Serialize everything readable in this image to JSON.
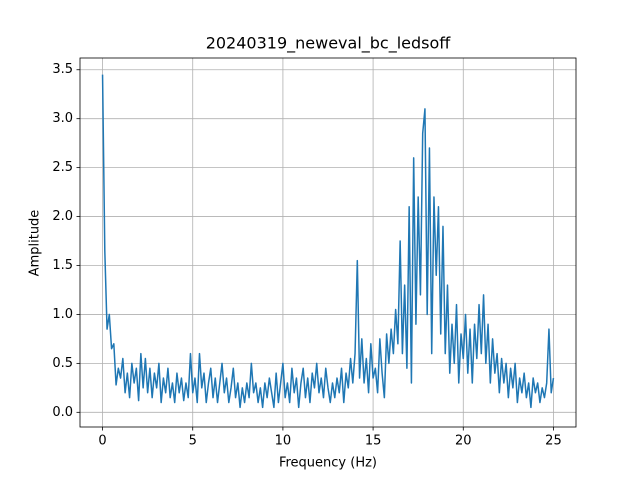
{
  "chart_data": {
    "type": "line",
    "title": "20240319_neweval_bc_ledsoff",
    "xlabel": "Frequency (Hz)",
    "ylabel": "Amplitude",
    "color": "#1f77b4",
    "grid": true,
    "xlim": [
      -1.25,
      26.25
    ],
    "ylim": [
      -0.15,
      3.62
    ],
    "xticks": [
      0,
      5,
      10,
      15,
      20,
      25
    ],
    "yticks": [
      {
        "value": 0,
        "label": "0.0"
      },
      {
        "value": 0.5,
        "label": "0.5"
      },
      {
        "value": 1,
        "label": "1.0"
      },
      {
        "value": 1.5,
        "label": "1.5"
      },
      {
        "value": 2,
        "label": "2.0"
      },
      {
        "value": 2.5,
        "label": "2.5"
      },
      {
        "value": 3,
        "label": "3.0"
      },
      {
        "value": 3.5,
        "label": "3.5"
      }
    ],
    "x": [
      0,
      0.125,
      0.25,
      0.375,
      0.5,
      0.625,
      0.75,
      0.875,
      1,
      1.125,
      1.25,
      1.375,
      1.5,
      1.625,
      1.75,
      1.875,
      2,
      2.125,
      2.25,
      2.375,
      2.5,
      2.625,
      2.75,
      2.875,
      3,
      3.125,
      3.25,
      3.375,
      3.5,
      3.625,
      3.75,
      3.875,
      4,
      4.125,
      4.25,
      4.375,
      4.5,
      4.625,
      4.75,
      4.875,
      5,
      5.125,
      5.25,
      5.375,
      5.5,
      5.625,
      5.75,
      5.875,
      6,
      6.125,
      6.25,
      6.375,
      6.5,
      6.625,
      6.75,
      6.875,
      7,
      7.125,
      7.25,
      7.375,
      7.5,
      7.625,
      7.75,
      7.875,
      8,
      8.125,
      8.25,
      8.375,
      8.5,
      8.625,
      8.75,
      8.875,
      9,
      9.125,
      9.25,
      9.375,
      9.5,
      9.625,
      9.75,
      9.875,
      10,
      10.125,
      10.25,
      10.375,
      10.5,
      10.625,
      10.75,
      10.875,
      11,
      11.125,
      11.25,
      11.375,
      11.5,
      11.625,
      11.75,
      11.875,
      12,
      12.125,
      12.25,
      12.375,
      12.5,
      12.625,
      12.75,
      12.875,
      13,
      13.125,
      13.25,
      13.375,
      13.5,
      13.625,
      13.75,
      13.875,
      14,
      14.125,
      14.25,
      14.375,
      14.5,
      14.625,
      14.75,
      14.875,
      15,
      15.125,
      15.25,
      15.375,
      15.5,
      15.625,
      15.75,
      15.875,
      16,
      16.125,
      16.25,
      16.375,
      16.5,
      16.625,
      16.75,
      16.875,
      17,
      17.125,
      17.25,
      17.375,
      17.5,
      17.625,
      17.75,
      17.875,
      18,
      18.125,
      18.25,
      18.375,
      18.5,
      18.625,
      18.75,
      18.875,
      19,
      19.125,
      19.25,
      19.375,
      19.5,
      19.625,
      19.75,
      19.875,
      20,
      20.125,
      20.25,
      20.375,
      20.5,
      20.625,
      20.75,
      20.875,
      21,
      21.125,
      21.25,
      21.375,
      21.5,
      21.625,
      21.75,
      21.875,
      22,
      22.125,
      22.25,
      22.375,
      22.5,
      22.625,
      22.75,
      22.875,
      23,
      23.125,
      23.25,
      23.375,
      23.5,
      23.625,
      23.75,
      23.875,
      24,
      24.125,
      24.25,
      24.375,
      24.5,
      24.625,
      24.75,
      24.875,
      25
    ],
    "values": [
      3.45,
      1.65,
      0.85,
      1.0,
      0.65,
      0.7,
      0.28,
      0.45,
      0.35,
      0.55,
      0.2,
      0.4,
      0.15,
      0.5,
      0.3,
      0.45,
      0.12,
      0.6,
      0.25,
      0.55,
      0.2,
      0.45,
      0.15,
      0.4,
      0.25,
      0.5,
      0.1,
      0.35,
      0.2,
      0.45,
      0.15,
      0.3,
      0.1,
      0.4,
      0.2,
      0.35,
      0.12,
      0.3,
      0.15,
      0.6,
      0.2,
      0.35,
      0.1,
      0.6,
      0.25,
      0.4,
      0.1,
      0.3,
      0.45,
      0.15,
      0.35,
      0.1,
      0.3,
      0.5,
      0.2,
      0.35,
      0.1,
      0.25,
      0.45,
      0.15,
      0.3,
      0.05,
      0.25,
      0.1,
      0.3,
      0.15,
      0.5,
      0.2,
      0.3,
      0.1,
      0.25,
      0.05,
      0.3,
      0.15,
      0.35,
      0.2,
      0.05,
      0.4,
      0.1,
      0.3,
      0.5,
      0.15,
      0.3,
      0.1,
      0.45,
      0.2,
      0.35,
      0.05,
      0.3,
      0.45,
      0.15,
      0.35,
      0.1,
      0.4,
      0.25,
      0.5,
      0.2,
      0.35,
      0.15,
      0.45,
      0.25,
      0.1,
      0.3,
      0.15,
      0.35,
      0.2,
      0.45,
      0.1,
      0.4,
      0.25,
      0.55,
      0.3,
      0.6,
      1.55,
      0.35,
      0.75,
      0.3,
      0.55,
      0.2,
      0.7,
      0.35,
      0.45,
      0.2,
      0.75,
      0.4,
      0.15,
      0.8,
      0.5,
      0.85,
      0.6,
      1.05,
      0.7,
      1.75,
      0.6,
      1.3,
      0.45,
      2.1,
      0.3,
      2.6,
      0.9,
      2.2,
      1.2,
      2.85,
      3.1,
      1.0,
      2.7,
      0.6,
      2.2,
      1.4,
      2.1,
      0.8,
      1.9,
      0.6,
      1.3,
      0.4,
      0.9,
      0.5,
      1.1,
      0.3,
      0.8,
      0.55,
      1.0,
      0.4,
      0.85,
      0.3,
      0.9,
      0.55,
      1.1,
      0.6,
      1.2,
      0.5,
      0.9,
      0.3,
      0.75,
      0.4,
      0.6,
      0.2,
      0.55,
      0.3,
      0.5,
      0.15,
      0.45,
      0.25,
      0.5,
      0.1,
      0.35,
      0.2,
      0.4,
      0.15,
      0.3,
      0.05,
      0.35,
      0.2,
      0.3,
      0.1,
      0.25,
      0.15,
      0.3,
      0.85,
      0.2,
      0.35
    ]
  }
}
